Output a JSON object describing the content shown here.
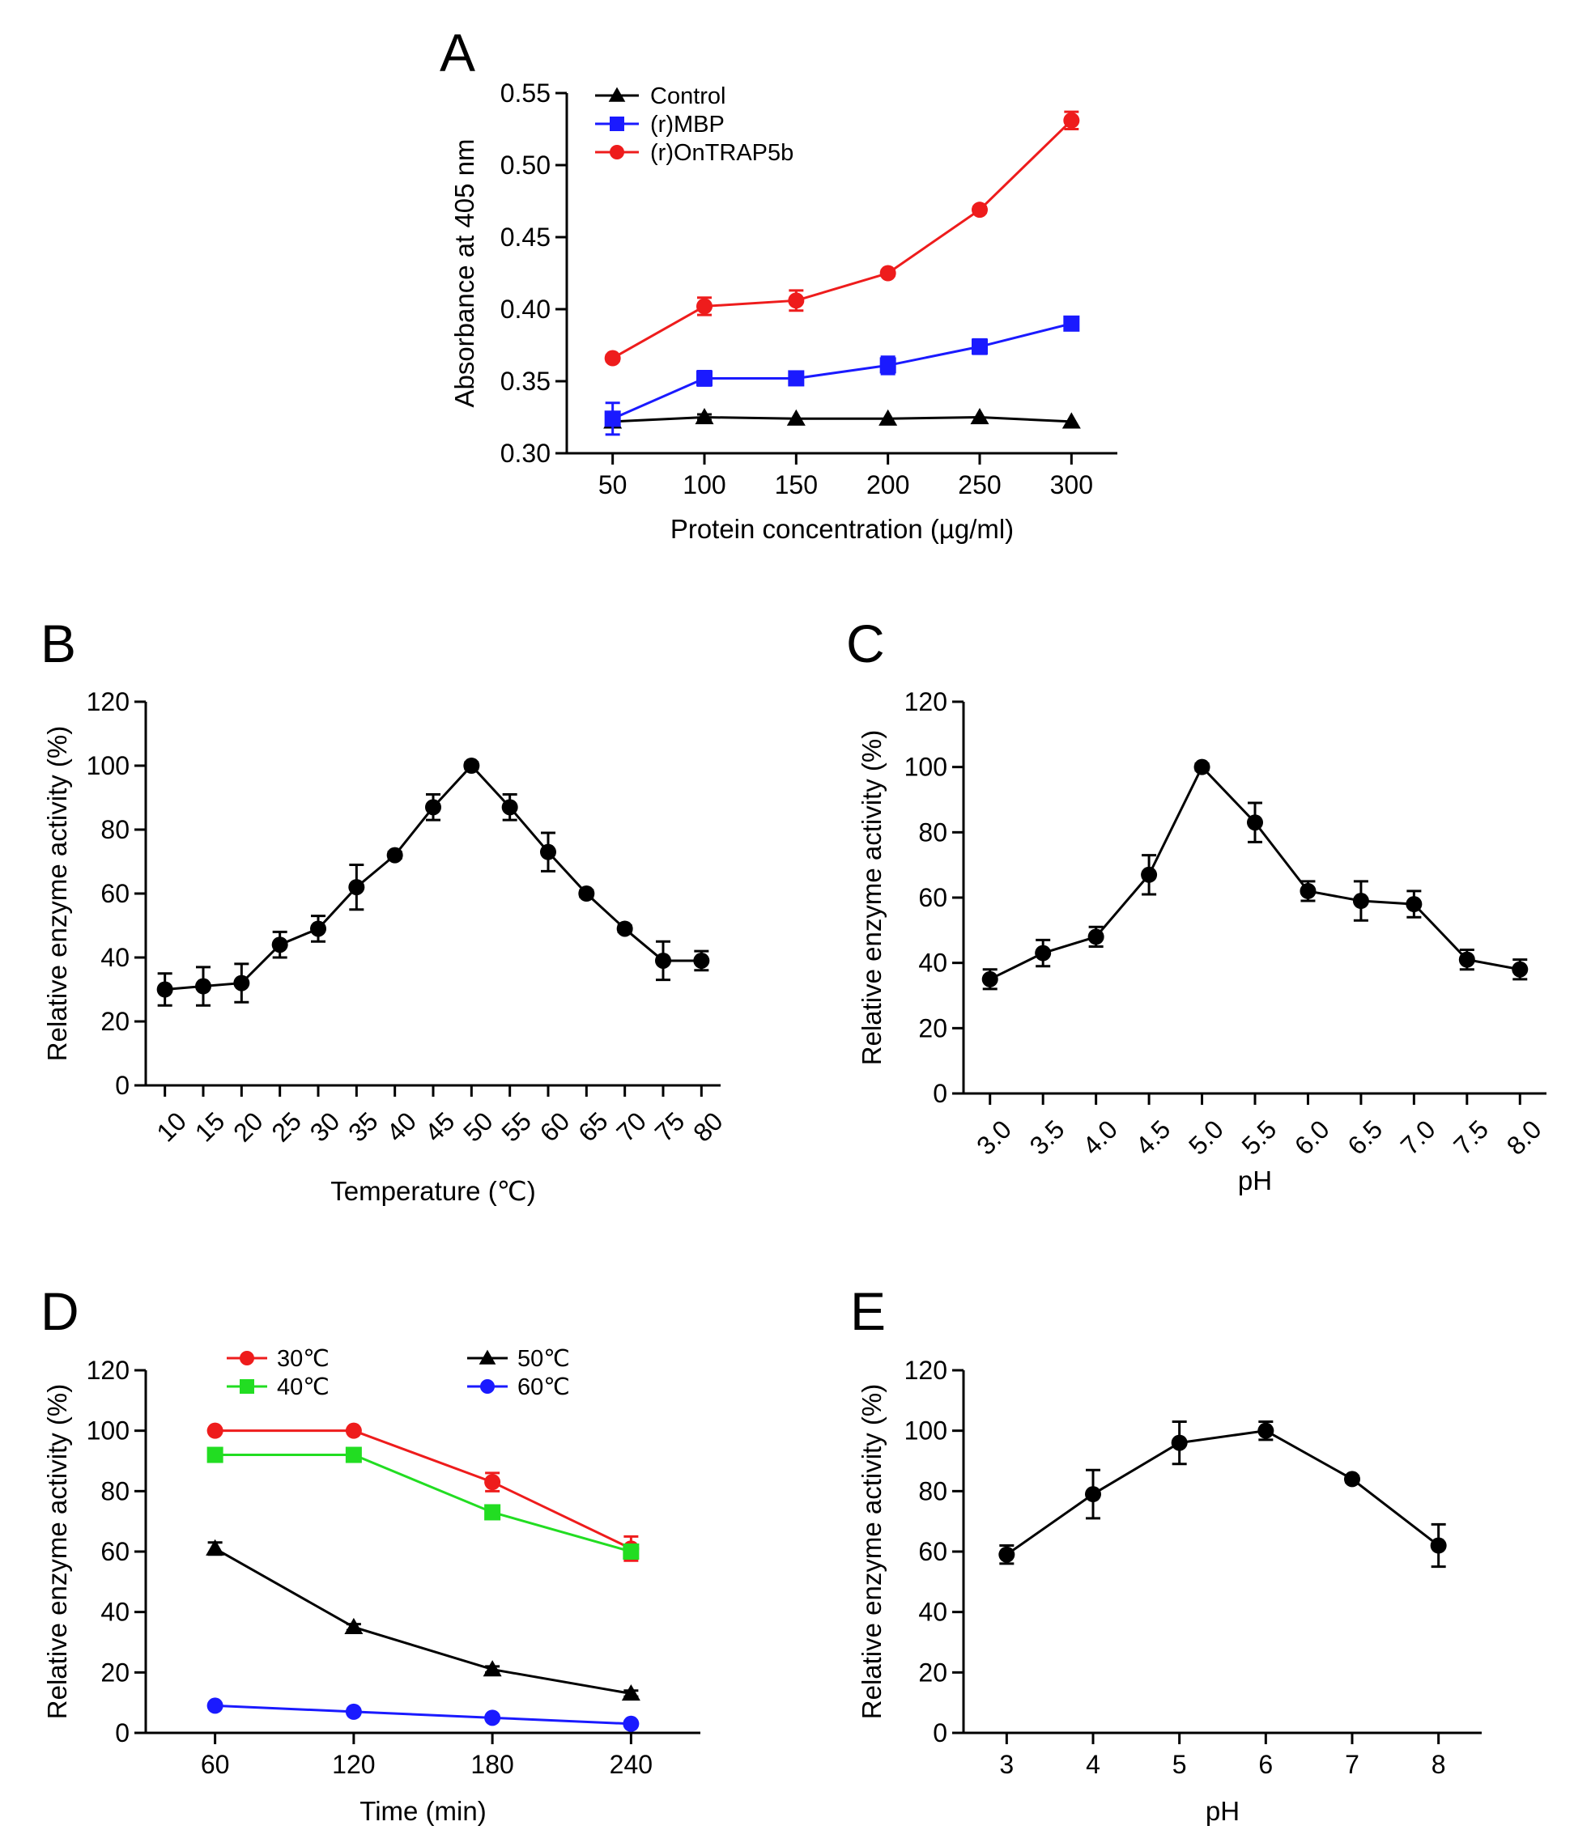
{
  "chart_data": [
    {
      "panel": "A",
      "type": "line",
      "xlabel": "Protein concentration (µg/ml)",
      "ylabel": "Absorbance at 405 nm",
      "x": [
        50,
        100,
        150,
        200,
        250,
        300
      ],
      "xticks": [
        "50",
        "100",
        "150",
        "200",
        "250",
        "300"
      ],
      "xlim": [
        25,
        325
      ],
      "ylim": [
        0.3,
        0.55
      ],
      "yticks": [
        "0.30",
        "0.35",
        "0.40",
        "0.45",
        "0.50",
        "0.55"
      ],
      "legend_position": "top-left",
      "series": [
        {
          "name": "Control",
          "color": "#000000",
          "marker": "triangle",
          "values": [
            0.322,
            0.325,
            0.324,
            0.324,
            0.325,
            0.322
          ],
          "errors": [
            0.003,
            0.002,
            0.001,
            0.001,
            0.001,
            0.001
          ]
        },
        {
          "name": "(r)MBP",
          "color": "#1a1aff",
          "marker": "square",
          "values": [
            0.324,
            0.352,
            0.352,
            0.361,
            0.374,
            0.39
          ],
          "errors": [
            0.011,
            0.005,
            0.002,
            0.006,
            0.005,
            0.003
          ]
        },
        {
          "name": "(r)OnTRAP5b",
          "color": "#ee1c1c",
          "marker": "circle",
          "values": [
            0.366,
            0.402,
            0.406,
            0.425,
            0.469,
            0.531
          ],
          "errors": [
            0.002,
            0.006,
            0.007,
            0.002,
            0.002,
            0.006
          ]
        }
      ]
    },
    {
      "panel": "B",
      "type": "line",
      "xlabel": "Temperature (℃)",
      "ylabel": "Relative enzyme activity (%)",
      "x": [
        10,
        15,
        20,
        25,
        30,
        35,
        40,
        45,
        50,
        55,
        60,
        65,
        70,
        75,
        80
      ],
      "xticks": [
        "10",
        "15",
        "20",
        "25",
        "30",
        "35",
        "40",
        "45",
        "50",
        "55",
        "60",
        "65",
        "70",
        "75",
        "80"
      ],
      "xlim": [
        7.5,
        82.5
      ],
      "ylim": [
        0,
        120
      ],
      "yticks": [
        "0",
        "20",
        "40",
        "60",
        "80",
        "100",
        "120"
      ],
      "series": [
        {
          "name": "Relative activity",
          "color": "#000000",
          "marker": "circle",
          "values": [
            30,
            31,
            32,
            44,
            49,
            62,
            72,
            87,
            100,
            87,
            73,
            60,
            49,
            39,
            39
          ],
          "errors": [
            5,
            6,
            6,
            4,
            4,
            7,
            1,
            4,
            1,
            4,
            6,
            1,
            1,
            6,
            3
          ]
        }
      ]
    },
    {
      "panel": "C",
      "type": "line",
      "xlabel": "pH",
      "ylabel": "Relative enzyme activity (%)",
      "x": [
        3.0,
        3.5,
        4.0,
        4.5,
        5.0,
        5.5,
        6.0,
        6.5,
        7.0,
        7.5,
        8.0
      ],
      "xticks": [
        "3.0",
        "3.5",
        "4.0",
        "4.5",
        "5.0",
        "5.5",
        "6.0",
        "6.5",
        "7.0",
        "7.5",
        "8.0"
      ],
      "xlim": [
        2.75,
        8.25
      ],
      "ylim": [
        0,
        120
      ],
      "yticks": [
        "0",
        "20",
        "40",
        "60",
        "80",
        "100",
        "120"
      ],
      "series": [
        {
          "name": "Relative activity",
          "color": "#000000",
          "marker": "circle",
          "values": [
            35,
            43,
            48,
            67,
            100,
            83,
            62,
            59,
            58,
            41,
            38
          ],
          "errors": [
            3,
            4,
            3,
            6,
            1,
            6,
            3,
            6,
            4,
            3,
            3
          ]
        }
      ]
    },
    {
      "panel": "D",
      "type": "line",
      "xlabel": "Time (min)",
      "ylabel": "Relative enzyme activity (%)",
      "x": [
        60,
        120,
        180,
        240
      ],
      "xticks": [
        "60",
        "120",
        "180",
        "240"
      ],
      "xlim": [
        30,
        270
      ],
      "ylim": [
        0,
        120
      ],
      "yticks": [
        "0",
        "20",
        "40",
        "60",
        "80",
        "100",
        "120"
      ],
      "legend_position": "top",
      "series": [
        {
          "name": "30℃",
          "color": "#ee1c1c",
          "marker": "circle",
          "values": [
            100,
            100,
            83,
            61
          ],
          "errors": [
            0.5,
            0.5,
            3,
            4
          ]
        },
        {
          "name": "40℃",
          "color": "#22dd22",
          "marker": "square",
          "values": [
            92,
            92,
            73,
            60
          ],
          "errors": [
            1,
            1,
            1,
            2
          ]
        },
        {
          "name": "50℃",
          "color": "#000000",
          "marker": "triangle",
          "values": [
            61,
            35,
            21,
            13
          ],
          "errors": [
            2,
            1,
            1,
            1
          ]
        },
        {
          "name": "60℃",
          "color": "#1a1aff",
          "marker": "circle",
          "values": [
            9,
            7,
            5,
            3
          ],
          "errors": [
            0.5,
            0.5,
            0.5,
            0.5
          ]
        }
      ]
    },
    {
      "panel": "E",
      "type": "line",
      "xlabel": "pH",
      "ylabel": "Relative enzyme activity (%)",
      "x": [
        3,
        4,
        5,
        6,
        7,
        8
      ],
      "xticks": [
        "3",
        "4",
        "5",
        "6",
        "7",
        "8"
      ],
      "xlim": [
        2.5,
        8.5
      ],
      "ylim": [
        0,
        120
      ],
      "yticks": [
        "0",
        "20",
        "40",
        "60",
        "80",
        "100",
        "120"
      ],
      "series": [
        {
          "name": "Relative activity",
          "color": "#000000",
          "marker": "circle",
          "values": [
            59,
            79,
            96,
            100,
            84,
            62
          ],
          "errors": [
            3,
            8,
            7,
            3,
            1,
            7
          ]
        }
      ]
    }
  ]
}
